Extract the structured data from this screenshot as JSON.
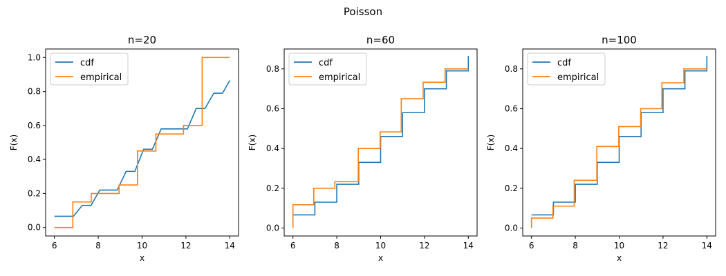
{
  "figure": {
    "suptitle": "Poisson"
  },
  "chart_data": [
    {
      "type": "line",
      "title": "n=20",
      "xlabel": "x",
      "ylabel": "F(x)",
      "xlim": [
        5.6,
        14.4
      ],
      "ylim": [
        -0.05,
        1.05
      ],
      "xticks": [
        6,
        8,
        10,
        12,
        14
      ],
      "yticks": [
        0.0,
        0.2,
        0.4,
        0.6,
        0.8,
        1.0
      ],
      "tick_labels_x": [
        "6",
        "8",
        "10",
        "12",
        "14"
      ],
      "tick_labels_y": [
        "0.0",
        "0.2",
        "0.4",
        "0.6",
        "0.8",
        "1.0"
      ],
      "legend": {
        "position": "upper-left",
        "entries": [
          "cdf",
          "empirical"
        ]
      },
      "series": [
        {
          "name": "cdf",
          "color": "#1f77b4",
          "x": [
            6.0,
            6.87,
            7.27,
            7.67,
            8.07,
            8.87,
            9.27,
            9.67,
            10.07,
            10.47,
            10.87,
            11.27,
            11.67,
            12.07,
            12.47,
            12.87,
            13.27,
            13.67,
            14.0
          ],
          "y": [
            0.066,
            0.066,
            0.13,
            0.13,
            0.22,
            0.22,
            0.33,
            0.33,
            0.46,
            0.46,
            0.58,
            0.58,
            0.58,
            0.58,
            0.7,
            0.7,
            0.79,
            0.79,
            0.865
          ]
        },
        {
          "name": "empirical",
          "color": "#ff7f0e",
          "steps": [
            [
              6.0,
              0.0
            ],
            [
              6.84,
              0.15
            ],
            [
              7.68,
              0.2
            ],
            [
              8.95,
              0.25
            ],
            [
              9.79,
              0.45
            ],
            [
              10.63,
              0.55
            ],
            [
              11.89,
              0.6
            ],
            [
              12.74,
              1.0
            ],
            [
              14.0,
              1.0
            ]
          ]
        }
      ]
    },
    {
      "type": "line",
      "title": "n=60",
      "xlabel": "x",
      "ylabel": "F(x)",
      "xlim": [
        5.6,
        14.4
      ],
      "ylim": [
        -0.04,
        0.9
      ],
      "xticks": [
        6,
        8,
        10,
        12,
        14
      ],
      "yticks": [
        0.0,
        0.2,
        0.4,
        0.6,
        0.8
      ],
      "tick_labels_x": [
        "6",
        "8",
        "10",
        "12",
        "14"
      ],
      "tick_labels_y": [
        "0.0",
        "0.2",
        "0.4",
        "0.6",
        "0.8"
      ],
      "legend": {
        "position": "upper-left",
        "entries": [
          "cdf",
          "empirical"
        ]
      },
      "series": [
        {
          "name": "cdf",
          "color": "#1f77b4",
          "steps": [
            [
              6.0,
              0.066
            ],
            [
              7.0,
              0.13
            ],
            [
              8.0,
              0.22
            ],
            [
              9.0,
              0.33
            ],
            [
              10.0,
              0.46
            ],
            [
              11.0,
              0.58
            ],
            [
              12.0,
              0.7
            ],
            [
              13.0,
              0.79
            ],
            [
              14.0,
              0.865
            ]
          ]
        },
        {
          "name": "empirical",
          "color": "#ff7f0e",
          "steps": [
            [
              6.0,
              0.0
            ],
            [
              6.0,
              0.117
            ],
            [
              6.95,
              0.2
            ],
            [
              7.91,
              0.233
            ],
            [
              8.98,
              0.4
            ],
            [
              9.98,
              0.483
            ],
            [
              10.94,
              0.65
            ],
            [
              11.94,
              0.733
            ],
            [
              12.94,
              0.8
            ],
            [
              14.0,
              0.8
            ]
          ]
        }
      ]
    },
    {
      "type": "line",
      "title": "n=100",
      "xlabel": "x",
      "ylabel": "F(x)",
      "xlim": [
        5.6,
        14.4
      ],
      "ylim": [
        -0.04,
        0.9
      ],
      "xticks": [
        6,
        8,
        10,
        12,
        14
      ],
      "yticks": [
        0.0,
        0.2,
        0.4,
        0.6,
        0.8
      ],
      "tick_labels_x": [
        "6",
        "8",
        "10",
        "12",
        "14"
      ],
      "tick_labels_y": [
        "0.0",
        "0.2",
        "0.4",
        "0.6",
        "0.8"
      ],
      "legend": {
        "position": "upper-left",
        "entries": [
          "cdf",
          "empirical"
        ]
      },
      "series": [
        {
          "name": "cdf",
          "color": "#1f77b4",
          "steps": [
            [
              6.0,
              0.066
            ],
            [
              7.0,
              0.13
            ],
            [
              8.0,
              0.22
            ],
            [
              9.0,
              0.33
            ],
            [
              10.0,
              0.46
            ],
            [
              11.0,
              0.58
            ],
            [
              12.0,
              0.7
            ],
            [
              13.0,
              0.79
            ],
            [
              14.0,
              0.865
            ]
          ]
        },
        {
          "name": "empirical",
          "color": "#ff7f0e",
          "steps": [
            [
              6.0,
              0.0
            ],
            [
              6.0,
              0.05
            ],
            [
              6.98,
              0.11
            ],
            [
              7.95,
              0.24
            ],
            [
              8.98,
              0.41
            ],
            [
              9.98,
              0.51
            ],
            [
              10.98,
              0.6
            ],
            [
              11.95,
              0.73
            ],
            [
              12.95,
              0.8
            ],
            [
              14.0,
              0.8
            ]
          ]
        }
      ]
    }
  ]
}
